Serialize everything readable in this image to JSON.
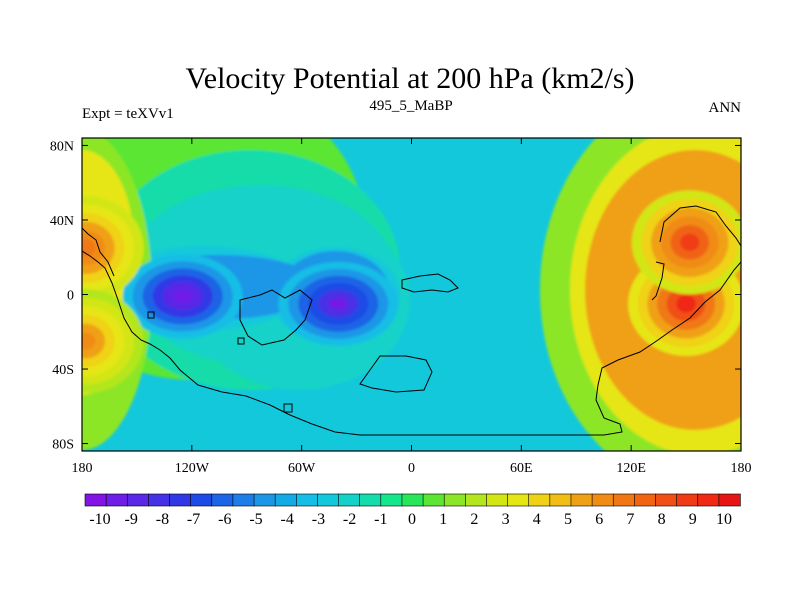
{
  "chart_data": {
    "type": "heatmap",
    "title": "Velocity Potential at 200 hPa (km2/s)",
    "subtitle_left": "Expt = teXVv1",
    "subtitle_center": "495_5_MaBP",
    "subtitle_right": "ANN",
    "x_range": [
      -180,
      180
    ],
    "y_range": [
      -90,
      90
    ],
    "x_ticks": [
      {
        "value": -180,
        "label": "180"
      },
      {
        "value": -120,
        "label": "120W"
      },
      {
        "value": -60,
        "label": "60W"
      },
      {
        "value": 0,
        "label": "0"
      },
      {
        "value": 60,
        "label": "60E"
      },
      {
        "value": 120,
        "label": "120E"
      },
      {
        "value": 180,
        "label": "180"
      }
    ],
    "y_ticks": [
      {
        "value": 80,
        "label": "80N"
      },
      {
        "value": 40,
        "label": "40N"
      },
      {
        "value": 0,
        "label": "0"
      },
      {
        "value": -40,
        "label": "40S"
      },
      {
        "value": -80,
        "label": "80S"
      }
    ],
    "colorbar": {
      "levels": [
        -10,
        -9,
        -8,
        -7,
        -6,
        -5,
        -4,
        -3,
        -2,
        -1,
        0,
        1,
        2,
        3,
        4,
        5,
        6,
        7,
        8,
        9,
        10
      ],
      "labels": [
        "-10",
        "-9",
        "-8",
        "-7",
        "-6",
        "-5",
        "-4",
        "-3",
        "-2",
        "-1",
        "0",
        "1",
        "2",
        "3",
        "4",
        "5",
        "6",
        "7",
        "8",
        "9",
        "10"
      ],
      "colors": [
        "#8214e6",
        "#6e1ee6",
        "#5a28e6",
        "#4632e6",
        "#3237e6",
        "#1e4be6",
        "#1e64e6",
        "#1e7de6",
        "#1e96e6",
        "#14aae6",
        "#14bee6",
        "#14c8dc",
        "#14d2c8",
        "#14dcaa",
        "#14e68c",
        "#28e65a",
        "#5ae632",
        "#8ce628",
        "#b4e61e",
        "#d2e614",
        "#e6e614",
        "#f0d214",
        "#f0be14",
        "#f0a014",
        "#f08c14",
        "#f07814",
        "#f06414",
        "#f05014",
        "#f03c14",
        "#f02814",
        "#e61414"
      ]
    },
    "field_centers": [
      {
        "lon": -125,
        "lat": -1,
        "value": -9.6
      },
      {
        "lon": -40,
        "lat": -5,
        "value": -9.3
      },
      {
        "lon": 150,
        "lat": -5,
        "value": 9.0
      },
      {
        "lon": 152,
        "lat": 28,
        "value": 8.4
      },
      {
        "lon": -178,
        "lat": 25,
        "value": 6.8
      },
      {
        "lon": -178,
        "lat": -25,
        "value": 5.8
      }
    ]
  }
}
